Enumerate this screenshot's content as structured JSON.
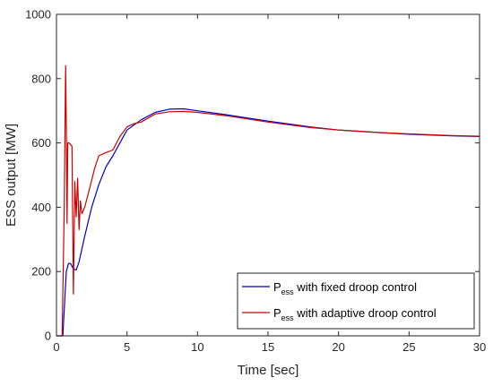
{
  "chart_data": {
    "type": "line",
    "xlabel": "Time [sec]",
    "ylabel": "ESS output [MW]",
    "xlim": [
      0,
      30
    ],
    "ylim": [
      0,
      1000
    ],
    "x_ticks": [
      "0",
      "5",
      "10",
      "15",
      "20",
      "25",
      "30"
    ],
    "y_ticks": [
      "0",
      "200",
      "400",
      "600",
      "800",
      "1000"
    ],
    "grid": false,
    "legend_position": "bottom-right",
    "series": [
      {
        "name_main": "P",
        "name_sub": "ess",
        "name_rest": " with fixed droop control",
        "color": "#0000CC",
        "points": [
          [
            0,
            0
          ],
          [
            0.45,
            0
          ],
          [
            0.6,
            120
          ],
          [
            0.7,
            200
          ],
          [
            0.85,
            225
          ],
          [
            1.0,
            225
          ],
          [
            1.2,
            208
          ],
          [
            1.4,
            205
          ],
          [
            1.6,
            230
          ],
          [
            2.0,
            310
          ],
          [
            2.5,
            400
          ],
          [
            3.0,
            470
          ],
          [
            3.5,
            525
          ],
          [
            4.0,
            560
          ],
          [
            4.5,
            600
          ],
          [
            5.0,
            640
          ],
          [
            6.0,
            672
          ],
          [
            7.0,
            695
          ],
          [
            8.0,
            705
          ],
          [
            9.0,
            706
          ],
          [
            10.0,
            700
          ],
          [
            12.0,
            688
          ],
          [
            15.0,
            668
          ],
          [
            18.0,
            650
          ],
          [
            20.0,
            640
          ],
          [
            23.0,
            632
          ],
          [
            25.0,
            627
          ],
          [
            28.0,
            622
          ],
          [
            30.0,
            620
          ]
        ]
      },
      {
        "name_main": "P",
        "name_sub": "ess",
        "name_rest": " with adaptive droop control",
        "color": "#CC0000",
        "points": [
          [
            0,
            0
          ],
          [
            0.4,
            0
          ],
          [
            0.55,
            400
          ],
          [
            0.65,
            840
          ],
          [
            0.7,
            650
          ],
          [
            0.75,
            350
          ],
          [
            0.8,
            600
          ],
          [
            0.9,
            600
          ],
          [
            1.0,
            595
          ],
          [
            1.1,
            590
          ],
          [
            1.2,
            130
          ],
          [
            1.3,
            480
          ],
          [
            1.4,
            370
          ],
          [
            1.5,
            490
          ],
          [
            1.6,
            330
          ],
          [
            1.7,
            420
          ],
          [
            1.8,
            380
          ],
          [
            2.0,
            400
          ],
          [
            2.3,
            450
          ],
          [
            2.7,
            520
          ],
          [
            3.0,
            560
          ],
          [
            3.5,
            570
          ],
          [
            4.0,
            578
          ],
          [
            4.5,
            620
          ],
          [
            5.0,
            650
          ],
          [
            5.5,
            660
          ],
          [
            6.0,
            665
          ],
          [
            7.0,
            690
          ],
          [
            8.0,
            697
          ],
          [
            9.0,
            698
          ],
          [
            10.0,
            695
          ],
          [
            12.0,
            685
          ],
          [
            15.0,
            665
          ],
          [
            18.0,
            648
          ],
          [
            20.0,
            640
          ],
          [
            23.0,
            632
          ],
          [
            25.0,
            628
          ],
          [
            28.0,
            623
          ],
          [
            30.0,
            621
          ]
        ]
      }
    ]
  }
}
